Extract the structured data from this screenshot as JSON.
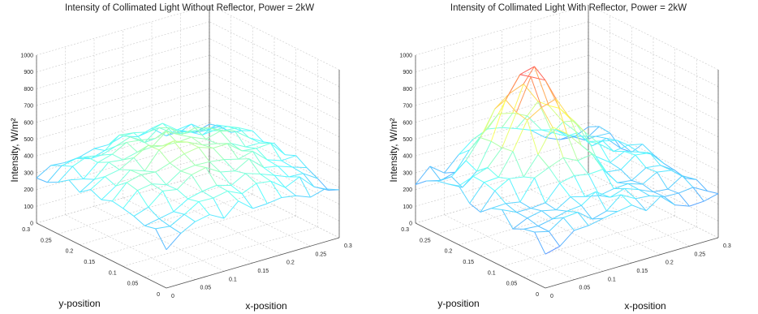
{
  "chart_data": [
    {
      "type": "surface",
      "title": "Intensity of Collimated Light Without Reflector, Power = 2kW",
      "xlabel": "x-position",
      "ylabel": "y-position",
      "zlabel": "Intensity, W/m²",
      "xlim": [
        0,
        0.3
      ],
      "ylim": [
        0,
        0.3
      ],
      "zlim": [
        0,
        1000
      ],
      "x_ticks": [
        "0",
        "0.05",
        "0.1",
        "0.15",
        "0.2",
        "0.25",
        "0.3"
      ],
      "y_ticks": [
        "0",
        "0.05",
        "0.1",
        "0.15",
        "0.2",
        "0.25",
        "0.3"
      ],
      "z_ticks": [
        "0",
        "100",
        "200",
        "300",
        "400",
        "500",
        "600",
        "700",
        "800",
        "900",
        "1000"
      ],
      "grid": true,
      "colormap": "jet",
      "surface": {
        "model": "dome",
        "grid_points": 13,
        "base": 370,
        "peak": 530,
        "edge_min": 90,
        "noise_amplitude": 40,
        "description_values": "mesh of intensity values over x,y in [0,0.3]"
      }
    },
    {
      "type": "surface",
      "title": "Intensity of Collimated Light With Reflector, Power = 2kW",
      "xlabel": "x-position",
      "ylabel": "y-position",
      "zlabel": "Intensity, W/m²",
      "xlim": [
        0,
        0.3
      ],
      "ylim": [
        0,
        0.3
      ],
      "zlim": [
        0,
        1000
      ],
      "x_ticks": [
        "0",
        "0.05",
        "0.1",
        "0.15",
        "0.2",
        "0.25",
        "0.3"
      ],
      "y_ticks": [
        "0",
        "0.05",
        "0.1",
        "0.15",
        "0.2",
        "0.25",
        "0.3"
      ],
      "z_ticks": [
        "0",
        "100",
        "200",
        "300",
        "400",
        "500",
        "600",
        "700",
        "800",
        "900",
        "1000"
      ],
      "grid": true,
      "colormap": "jet",
      "surface": {
        "model": "peaked",
        "grid_points": 13,
        "base": 330,
        "peak": 900,
        "edge_min": 150,
        "noise_amplitude": 50
      }
    }
  ]
}
